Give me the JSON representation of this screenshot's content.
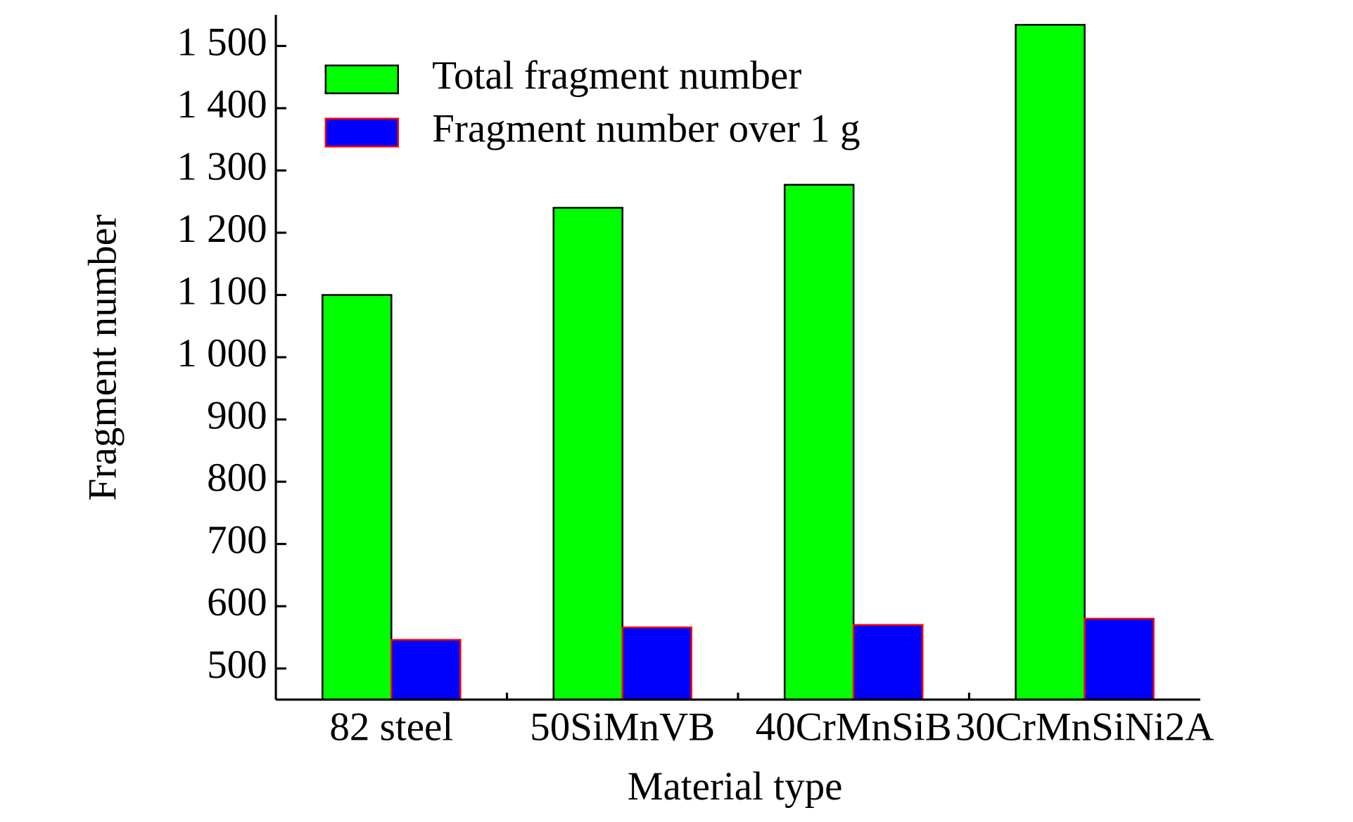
{
  "chart_data": {
    "type": "bar",
    "x_label": "Material type",
    "y_label": "Fragment number",
    "categories": [
      "82 steel",
      "50SiMnVB",
      "40CrMnSiB",
      "30CrMnSiNi2A"
    ],
    "series": [
      {
        "name": "Total fragment number",
        "color": "#00ff00",
        "values": [
          1100,
          1240,
          1277,
          1534
        ]
      },
      {
        "name": "Fragment number over 1 g",
        "color": "#0000ff",
        "values": [
          546,
          566,
          570,
          580
        ]
      }
    ],
    "ylim": [
      450,
      1550
    ],
    "yticks": [
      500,
      600,
      700,
      800,
      900,
      {
        "value": 1000,
        "label": "1 000"
      },
      {
        "value": 1100,
        "label": "1 100"
      },
      {
        "value": 1200,
        "label": "1 200"
      },
      {
        "value": 1300,
        "label": "1 300"
      },
      {
        "value": 1400,
        "label": "1 400"
      },
      {
        "value": 1500,
        "label": "1 500"
      }
    ],
    "legend": "upper-left",
    "grid": false
  }
}
